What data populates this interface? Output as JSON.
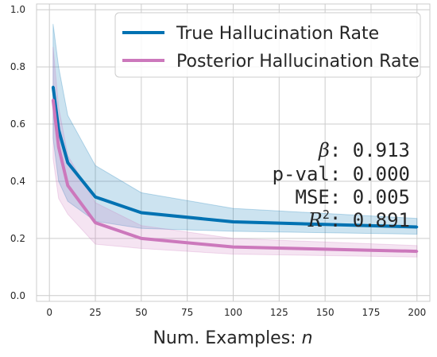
{
  "chart_data": {
    "type": "line",
    "xlabel": "Num. Examples: ",
    "xlabel_var": "n",
    "xlim": [
      -7,
      207
    ],
    "ylim": [
      -0.02,
      1.02
    ],
    "xticks": [
      0,
      25,
      50,
      75,
      100,
      125,
      150,
      175,
      200
    ],
    "yticks": [
      0.0,
      0.2,
      0.4,
      0.6,
      0.8,
      1.0
    ],
    "xtick_labels": [
      "0",
      "25",
      "50",
      "75",
      "100",
      "125",
      "150",
      "175",
      "200"
    ],
    "ytick_labels": [
      "0.0",
      "0.2",
      "0.4",
      "0.6",
      "0.8",
      "1.0"
    ],
    "grid": true,
    "legend_position": "top-right",
    "series": [
      {
        "name": "True Hallucination Rate",
        "color": "#0072b2",
        "x": [
          2,
          5,
          10,
          25,
          50,
          100,
          200
        ],
        "y": [
          0.73,
          0.58,
          0.465,
          0.345,
          0.29,
          0.258,
          0.24
        ],
        "band_upper": [
          0.95,
          0.8,
          0.63,
          0.455,
          0.36,
          0.305,
          0.27
        ],
        "band_lower": [
          0.55,
          0.4,
          0.33,
          0.26,
          0.235,
          0.225,
          0.215
        ]
      },
      {
        "name": "Posterior Hallucination Rate",
        "color": "#cc78bc",
        "x": [
          2,
          5,
          10,
          25,
          50,
          100,
          200
        ],
        "y": [
          0.685,
          0.52,
          0.385,
          0.255,
          0.2,
          0.17,
          0.155
        ],
        "band_upper": [
          0.87,
          0.66,
          0.49,
          0.325,
          0.245,
          0.2,
          0.175
        ],
        "band_lower": [
          0.48,
          0.34,
          0.285,
          0.18,
          0.165,
          0.145,
          0.135
        ]
      }
    ],
    "annotations": {
      "beta_symbol": "β",
      "beta_value": ": 0.913",
      "pval": "p-val: 0.000",
      "mse": "MSE: 0.005",
      "r2_symbol": "R",
      "r2_exp": "2",
      "r2_value": ": 0.891"
    }
  }
}
